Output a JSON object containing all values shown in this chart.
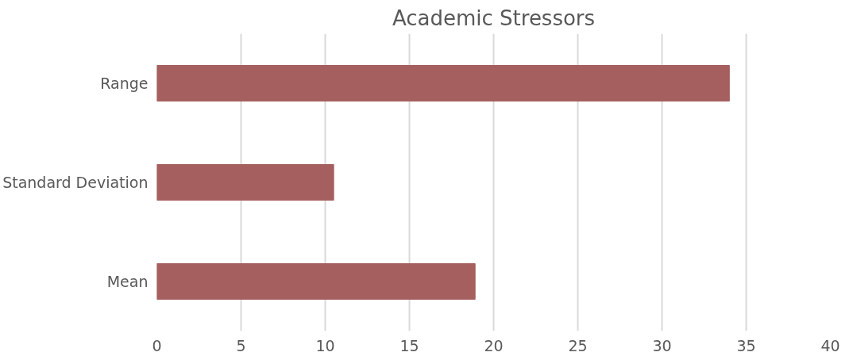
{
  "chart_data": {
    "type": "bar",
    "orientation": "horizontal",
    "title": "Academic Stressors",
    "categories": [
      "Range",
      "Standard Deviation",
      "Mean"
    ],
    "values": [
      34,
      10.5,
      18.9
    ],
    "color": "#a55f5f",
    "xlim": [
      0,
      40
    ],
    "xticks": [
      0,
      5,
      10,
      15,
      20,
      25,
      30,
      35,
      40
    ],
    "grid": "x"
  }
}
